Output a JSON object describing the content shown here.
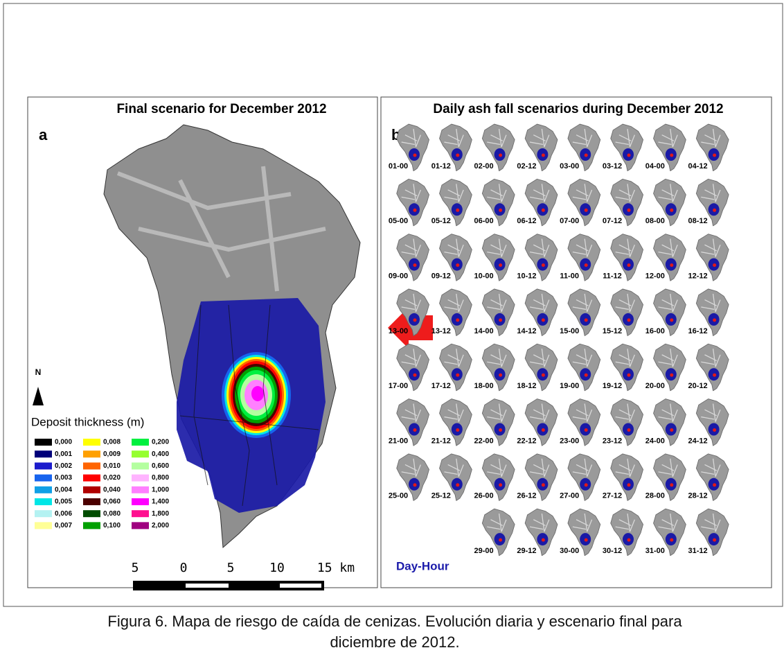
{
  "panel_a": {
    "title": "Final scenario for December 2012",
    "label": "a",
    "north": "N",
    "legend_title": "Deposit thickness (m)",
    "legend": [
      {
        "label": "0,000",
        "color": "#000000"
      },
      {
        "label": "0,001",
        "color": "#00007a"
      },
      {
        "label": "0,002",
        "color": "#1c1ccc"
      },
      {
        "label": "0,003",
        "color": "#1764ee"
      },
      {
        "label": "0,004",
        "color": "#10a0e6"
      },
      {
        "label": "0,005",
        "color": "#00e6e6"
      },
      {
        "label": "0,006",
        "color": "#b4f2f2"
      },
      {
        "label": "0,007",
        "color": "#ffff96"
      },
      {
        "label": "0,008",
        "color": "#ffff00"
      },
      {
        "label": "0,009",
        "color": "#ffa000"
      },
      {
        "label": "0,010",
        "color": "#ff6400"
      },
      {
        "label": "0,020",
        "color": "#ff0000"
      },
      {
        "label": "0,040",
        "color": "#b00000"
      },
      {
        "label": "0,060",
        "color": "#4c0000"
      },
      {
        "label": "0,080",
        "color": "#004c00"
      },
      {
        "label": "0,100",
        "color": "#00a000"
      },
      {
        "label": "0,200",
        "color": "#00f040"
      },
      {
        "label": "0,400",
        "color": "#96ff30"
      },
      {
        "label": "0,600",
        "color": "#b4ffa0"
      },
      {
        "label": "0,800",
        "color": "#ffb4ff"
      },
      {
        "label": "1,000",
        "color": "#ff80ff"
      },
      {
        "label": "1,400",
        "color": "#ff00ff"
      },
      {
        "label": "1,800",
        "color": "#ff1090"
      },
      {
        "label": "2,000",
        "color": "#a00080"
      }
    ],
    "scale_labels": [
      "5",
      "0",
      "5",
      "10",
      "15 km"
    ]
  },
  "panel_b": {
    "title": "Daily ash fall scenarios during December 2012",
    "label": "b",
    "key": "Day-Hour",
    "frames": [
      "01-00",
      "01-12",
      "02-00",
      "02-12",
      "03-00",
      "03-12",
      "04-00",
      "04-12",
      "05-00",
      "05-12",
      "06-00",
      "06-12",
      "07-00",
      "07-12",
      "08-00",
      "08-12",
      "09-00",
      "09-12",
      "10-00",
      "10-12",
      "11-00",
      "11-12",
      "12-00",
      "12-12",
      "13-00",
      "13-12",
      "14-00",
      "14-12",
      "15-00",
      "15-12",
      "16-00",
      "16-12",
      "17-00",
      "17-12",
      "18-00",
      "18-12",
      "19-00",
      "19-12",
      "20-00",
      "20-12",
      "21-00",
      "21-12",
      "22-00",
      "22-12",
      "23-00",
      "23-12",
      "24-00",
      "24-12",
      "25-00",
      "25-12",
      "26-00",
      "26-12",
      "27-00",
      "27-12",
      "28-00",
      "28-12",
      "29-00",
      "29-12",
      "30-00",
      "30-12",
      "31-00",
      "31-12"
    ]
  },
  "caption": "Figura 6. Mapa de riesgo de caída de cenizas. Evolución diaria y escenario final para diciembre de 2012."
}
